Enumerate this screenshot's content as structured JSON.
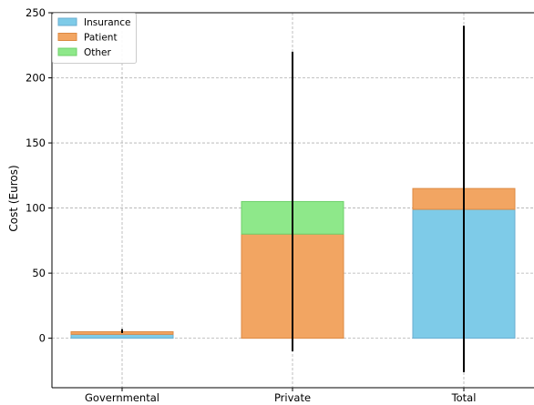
{
  "chart_data": {
    "type": "bar",
    "stacked": true,
    "categories": [
      "Governmental",
      "Private",
      "Total"
    ],
    "series": [
      {
        "name": "Insurance",
        "values": [
          3,
          0,
          99
        ],
        "color": "#7ecbe8",
        "edge": "#6aaed0"
      },
      {
        "name": "Patient",
        "values": [
          2,
          80,
          16
        ],
        "color": "#f2a562",
        "edge": "#dd8a43"
      },
      {
        "name": "Other",
        "values": [
          0,
          25,
          0
        ],
        "color": "#8ee88a",
        "edge": "#6fd06b"
      }
    ],
    "error_bars": [
      {
        "low": 4,
        "high": 7
      },
      {
        "low": -10,
        "high": 220
      },
      {
        "low": -26,
        "high": 240
      }
    ],
    "xlabel": "",
    "ylabel": "Cost (Euros)",
    "ylim": [
      -38,
      250
    ],
    "yticks": [
      0,
      50,
      100,
      150,
      200,
      250
    ],
    "grid": true,
    "legend_position": "top-left"
  }
}
